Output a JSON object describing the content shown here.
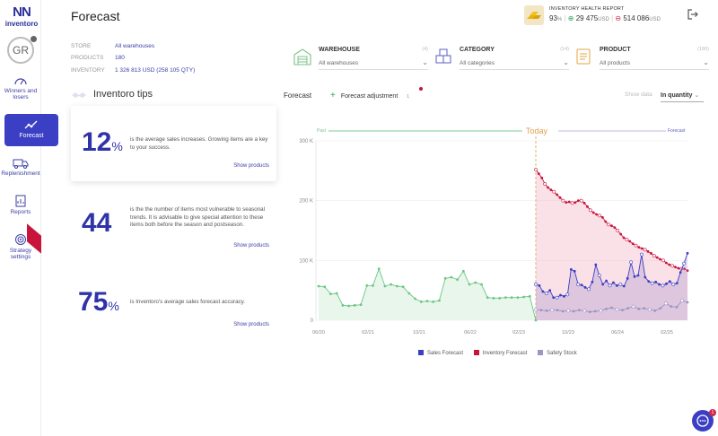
{
  "app": {
    "logo_mark": "NN",
    "logo_word": "inventoro",
    "page_title": "Forecast"
  },
  "user": {
    "initials": "GR"
  },
  "sidebar": {
    "items": [
      {
        "label": "Winners and losers",
        "icon": "speedometer-icon"
      },
      {
        "label": "Forecast",
        "icon": "trend-icon",
        "active": true
      },
      {
        "label": "Replenishment",
        "icon": "truck-icon"
      },
      {
        "label": "Reports",
        "icon": "report-icon"
      },
      {
        "label": "Strategy settings",
        "icon": "strategy-icon",
        "badge": "NEW"
      }
    ]
  },
  "report": {
    "heading": "INVENTORY HEALTH REPORT",
    "health_pct": "93",
    "health_unit": "%",
    "up_value": "29 475",
    "down_value": "514 086",
    "currency": "USD"
  },
  "info": {
    "store_label": "STORE",
    "store_value": "All warehouses",
    "products_label": "PRODUCTS",
    "products_value": "180",
    "inventory_label": "INVENTORY",
    "inventory_value": "1 326 813 USD  (258 105 QTY)"
  },
  "filters": [
    {
      "label": "WAREHOUSE",
      "count": "(4)",
      "value": "All warehouses",
      "icon": "warehouse-icon"
    },
    {
      "label": "CATEGORY",
      "count": "(14)",
      "value": "All categories",
      "icon": "category-icon"
    },
    {
      "label": "PRODUCT",
      "count": "(180)",
      "value": "All products",
      "icon": "product-icon"
    }
  ],
  "tips": {
    "title": "Inventoro tips",
    "items": [
      {
        "big": "12",
        "unit": "%",
        "text": "is the average sales increases. Growing items are a key to your success.",
        "link": "Show products"
      },
      {
        "big": "44",
        "unit": "",
        "text": "is the the number of items most vulnerable to seasonal trends. It is advisable to give special attention to these items both before the season and postseason.",
        "link": "Show products"
      },
      {
        "big": "75",
        "unit": "%",
        "text": "is Inventoro's average sales forecast accuracy.",
        "link": "Show products"
      }
    ]
  },
  "chart_header": {
    "title": "Forecast",
    "adjustment": "Forecast adjustment",
    "adjustment_count": "1",
    "show_data": "Show data",
    "quantity": "In quantity"
  },
  "chart_data": {
    "type": "line",
    "ylabel_unit": "K",
    "yticks": [
      0,
      100,
      200,
      300
    ],
    "ytick_labels": [
      "0",
      "100 K",
      "200 K",
      "300 K"
    ],
    "ylim": [
      0,
      300
    ],
    "xticks": [
      "06/20",
      "02/21",
      "10/21",
      "06/22",
      "02/23",
      "10/23",
      "06/24",
      "02/25"
    ],
    "past_label": "Past",
    "today_label": "Today",
    "forecast_label": "Forecast",
    "history": [
      57,
      56,
      44,
      45,
      25,
      24,
      25,
      26,
      58,
      58,
      86,
      57,
      60,
      57,
      56,
      45,
      36,
      31,
      32,
      31,
      33,
      70,
      72,
      68,
      82,
      60,
      63,
      60,
      38,
      37,
      37,
      38,
      38,
      38,
      39,
      40,
      0
    ],
    "series": [
      {
        "name": "Sales Forecast",
        "color": "#3b3fc4",
        "values": [
          60,
          58,
          48,
          45,
          50,
          38,
          38,
          42,
          40,
          43,
          85,
          82,
          60,
          59,
          55,
          52,
          64,
          93,
          75,
          60,
          66,
          58,
          63,
          58,
          60,
          57,
          70,
          97,
          73,
          75,
          110,
          72,
          65,
          62,
          64,
          60,
          58,
          61,
          65,
          60,
          62,
          80,
          95,
          112
        ]
      },
      {
        "name": "Inventory Forecast",
        "color": "#c8143c",
        "values": [
          252,
          245,
          238,
          228,
          222,
          218,
          215,
          210,
          205,
          200,
          197,
          198,
          196,
          197,
          200,
          200,
          196,
          190,
          184,
          180,
          177,
          175,
          172,
          165,
          160,
          158,
          155,
          150,
          144,
          138,
          135,
          132,
          128,
          125,
          122,
          120,
          118,
          115,
          112,
          108,
          105,
          102,
          100,
          96,
          93,
          91,
          89,
          87,
          86,
          86,
          83
        ]
      },
      {
        "name": "Safety Stock",
        "color": "#9b96c4",
        "values": [
          18,
          17,
          16,
          17,
          17,
          15,
          16,
          15,
          17,
          16,
          14,
          15,
          16,
          19,
          21,
          18,
          17,
          20,
          23,
          19,
          20,
          18,
          16,
          20,
          28,
          23,
          22,
          33,
          30
        ]
      }
    ]
  }
}
